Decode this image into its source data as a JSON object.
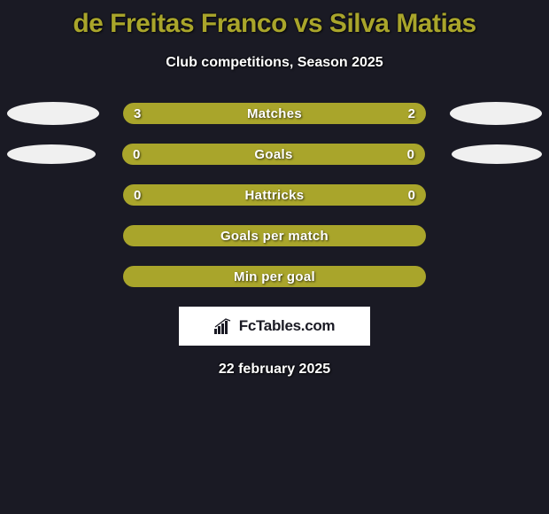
{
  "title": "de Freitas Franco vs Silva Matias",
  "title_color": "#a9a52b",
  "subtitle": "Club competitions, Season 2025",
  "subtitle_color": "#ffffff",
  "bar_color": "#a9a52b",
  "ellipse_left_color": "#f0f0f0",
  "ellipse_right_color": "#f0f0f0",
  "background_color": "#1a1a24",
  "rows": [
    {
      "label": "Matches",
      "left": "3",
      "right": "2",
      "show_ellipse": true,
      "left_ellipse_w": 104,
      "left_ellipse_h": 26,
      "right_ellipse_w": 104,
      "right_ellipse_h": 26
    },
    {
      "label": "Goals",
      "left": "0",
      "right": "0",
      "show_ellipse": true,
      "left_ellipse_w": 100,
      "left_ellipse_h": 22,
      "right_ellipse_w": 102,
      "right_ellipse_h": 22
    },
    {
      "label": "Hattricks",
      "left": "0",
      "right": "0",
      "show_ellipse": false
    },
    {
      "label": "Goals per match",
      "left": "",
      "right": "",
      "show_ellipse": false
    },
    {
      "label": "Min per goal",
      "left": "",
      "right": "",
      "show_ellipse": false
    }
  ],
  "brand": "FcTables.com",
  "date": "22 february 2025"
}
